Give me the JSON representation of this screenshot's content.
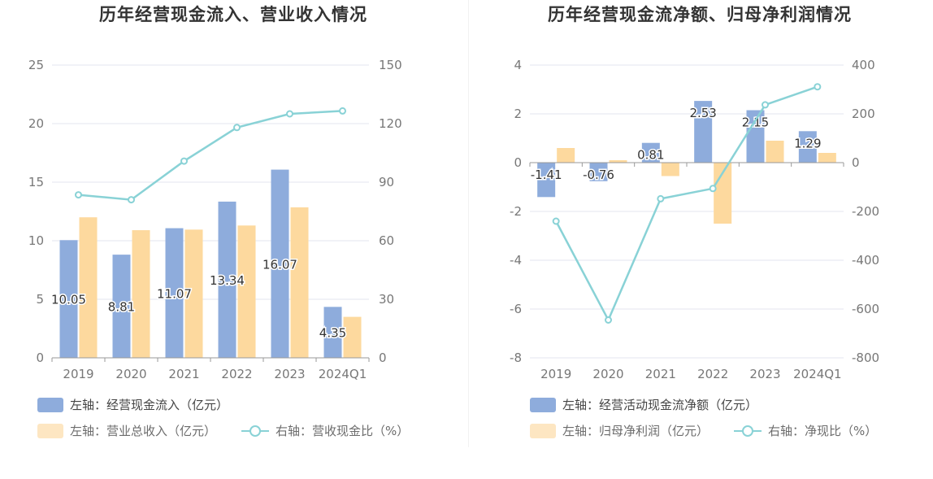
{
  "colors": {
    "bar_primary": "#8eacdc",
    "bar_secondary": "#fdd99e",
    "line": "#89d2d6",
    "axis_text": "#777777",
    "grid": "#e3e6ef"
  },
  "chart_data": [
    {
      "type": "bar",
      "title": "历年经营现金流入、营业收入情况",
      "categories": [
        "2019",
        "2020",
        "2021",
        "2022",
        "2023",
        "2024Q1"
      ],
      "left_axis": {
        "ticks": [
          "0",
          "5",
          "10",
          "15",
          "20",
          "25"
        ],
        "ylim": [
          0,
          25
        ]
      },
      "right_axis": {
        "ticks": [
          "0",
          "30",
          "60",
          "90",
          "120",
          "150"
        ],
        "ylim": [
          0,
          150
        ]
      },
      "series": [
        {
          "name": "左轴：经营现金流入（亿元）",
          "kind": "bar",
          "axis": "left",
          "values": [
            10.05,
            8.81,
            11.07,
            13.34,
            16.07,
            4.35
          ],
          "labels": [
            "10.05",
            "8.81",
            "11.07",
            "13.34",
            "16.07",
            "4.35"
          ]
        },
        {
          "name": "左轴：营业总收入（亿元）",
          "kind": "bar",
          "axis": "left",
          "values": [
            12.0,
            10.9,
            10.95,
            11.3,
            12.85,
            3.5
          ]
        },
        {
          "name": "右轴：营收现金比（%）",
          "kind": "line",
          "axis": "right",
          "values": [
            83.5,
            81.0,
            100.8,
            118.0,
            125.0,
            126.5
          ]
        }
      ],
      "grid": true,
      "legend_position": "bottom-left"
    },
    {
      "type": "bar",
      "title": "历年经营现金流净额、归母净利润情况",
      "categories": [
        "2019",
        "2020",
        "2021",
        "2022",
        "2023",
        "2024Q1"
      ],
      "left_axis": {
        "ticks": [
          "-8",
          "-6",
          "-4",
          "-2",
          "0",
          "2",
          "4"
        ],
        "ylim": [
          -8,
          4
        ]
      },
      "right_axis": {
        "ticks": [
          "-800",
          "-600",
          "-400",
          "-200",
          "0",
          "200",
          "400"
        ],
        "ylim": [
          -800,
          400
        ]
      },
      "series": [
        {
          "name": "左轴：经营活动现金流净额（亿元）",
          "kind": "bar",
          "axis": "left",
          "values": [
            -1.41,
            -0.76,
            0.81,
            2.53,
            2.15,
            1.29
          ],
          "labels": [
            "-1.41",
            "-0.76",
            "0.81",
            "2.53",
            "2.15",
            "1.29"
          ]
        },
        {
          "name": "左轴：归母净利润（亿元）",
          "kind": "bar",
          "axis": "left",
          "values": [
            0.6,
            0.1,
            -0.55,
            -2.5,
            0.9,
            0.4
          ]
        },
        {
          "name": "右轴：净现比（%）",
          "kind": "line",
          "axis": "right",
          "values": [
            -240,
            -645,
            -148,
            -106,
            237,
            311
          ]
        }
      ],
      "grid": true,
      "legend_position": "bottom-left"
    }
  ]
}
